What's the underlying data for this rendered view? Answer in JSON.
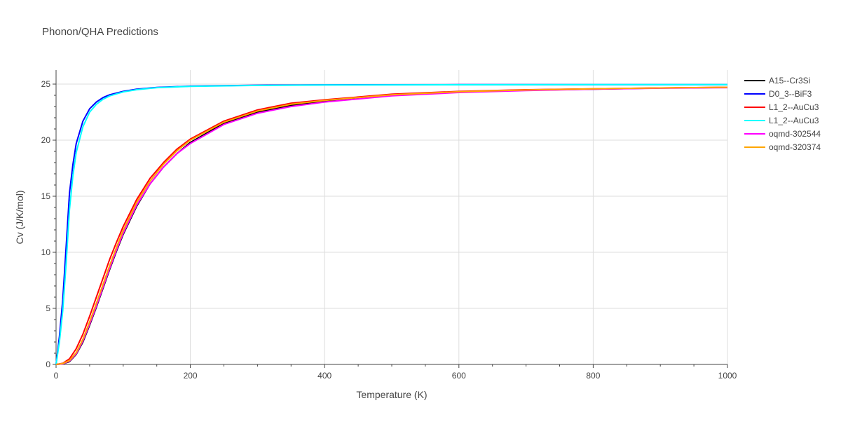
{
  "chart_data": {
    "type": "line",
    "title": "Phonon/QHA Predictions",
    "xlabel": "Temperature (K)",
    "ylabel": "Cv (J/K/mol)",
    "xlim": [
      0,
      1000
    ],
    "ylim": [
      0,
      26.25
    ],
    "xticks": [
      0,
      200,
      400,
      600,
      800,
      1000
    ],
    "yticks": [
      0,
      5,
      10,
      15,
      20,
      25
    ],
    "grid": true,
    "legend_position": "top-right",
    "series": [
      {
        "name": "A15--Cr3Si",
        "color": "#000000",
        "x": [
          0,
          10,
          20,
          30,
          40,
          50,
          60,
          70,
          80,
          90,
          100,
          120,
          140,
          160,
          180,
          200,
          250,
          300,
          350,
          400,
          500,
          600,
          700,
          800,
          900,
          1000
        ],
        "y": [
          0,
          0.05,
          0.25,
          0.9,
          2.0,
          3.5,
          5.1,
          6.8,
          8.5,
          10.1,
          11.6,
          14.1,
          16.1,
          17.6,
          18.8,
          19.8,
          21.5,
          22.5,
          23.1,
          23.5,
          24.0,
          24.3,
          24.45,
          24.55,
          24.65,
          24.7
        ]
      },
      {
        "name": "D0_3--BiF3",
        "color": "#0000ff",
        "x": [
          0,
          5,
          10,
          15,
          20,
          25,
          30,
          40,
          50,
          60,
          70,
          80,
          100,
          120,
          150,
          200,
          300,
          400,
          600,
          800,
          1000
        ],
        "y": [
          0,
          2.5,
          5.8,
          10.5,
          15.3,
          17.8,
          19.7,
          21.7,
          22.8,
          23.4,
          23.8,
          24.05,
          24.35,
          24.55,
          24.7,
          24.82,
          24.9,
          24.93,
          24.95,
          24.95,
          24.95
        ]
      },
      {
        "name": "L1_2--AuCu3",
        "color": "#ff0000",
        "x": [
          0,
          10,
          20,
          30,
          40,
          50,
          60,
          70,
          80,
          90,
          100,
          120,
          140,
          160,
          180,
          200,
          250,
          300,
          350,
          400,
          500,
          600,
          700,
          800,
          900,
          1000
        ],
        "y": [
          0,
          0.1,
          0.5,
          1.4,
          2.7,
          4.3,
          6.0,
          7.7,
          9.4,
          10.9,
          12.3,
          14.7,
          16.6,
          18.0,
          19.2,
          20.1,
          21.7,
          22.7,
          23.3,
          23.6,
          24.1,
          24.35,
          24.5,
          24.58,
          24.66,
          24.72
        ]
      },
      {
        "name": "L1_2--AuCu3",
        "color": "#00ffff",
        "x": [
          0,
          5,
          10,
          15,
          20,
          25,
          30,
          40,
          50,
          60,
          70,
          80,
          100,
          120,
          150,
          200,
          300,
          400,
          600,
          800,
          1000
        ],
        "y": [
          0,
          2.0,
          4.8,
          9.0,
          13.8,
          16.8,
          18.9,
          21.2,
          22.5,
          23.2,
          23.65,
          23.95,
          24.3,
          24.5,
          24.68,
          24.8,
          24.88,
          24.92,
          24.94,
          24.95,
          24.95
        ]
      },
      {
        "name": "oqmd-302544",
        "color": "#ff00ff",
        "x": [
          0,
          10,
          20,
          30,
          40,
          50,
          60,
          70,
          80,
          90,
          100,
          120,
          140,
          160,
          180,
          200,
          250,
          300,
          350,
          400,
          500,
          600,
          700,
          800,
          900,
          1000
        ],
        "y": [
          0,
          0.05,
          0.3,
          0.95,
          2.1,
          3.6,
          5.2,
          6.9,
          8.6,
          10.2,
          11.7,
          14.2,
          16.1,
          17.6,
          18.8,
          19.7,
          21.4,
          22.4,
          23.0,
          23.4,
          23.95,
          24.25,
          24.42,
          24.55,
          24.63,
          24.68
        ]
      },
      {
        "name": "oqmd-320374",
        "color": "#ffa500",
        "x": [
          0,
          10,
          20,
          30,
          40,
          50,
          60,
          70,
          80,
          90,
          100,
          120,
          140,
          160,
          180,
          200,
          250,
          300,
          350,
          400,
          500,
          600,
          700,
          800,
          900,
          1000
        ],
        "y": [
          0,
          0.08,
          0.35,
          1.05,
          2.25,
          3.8,
          5.45,
          7.15,
          8.85,
          10.45,
          11.95,
          14.45,
          16.35,
          17.85,
          19.05,
          20.0,
          21.6,
          22.6,
          23.2,
          23.55,
          24.05,
          24.32,
          24.48,
          24.58,
          24.66,
          24.72
        ]
      }
    ]
  }
}
